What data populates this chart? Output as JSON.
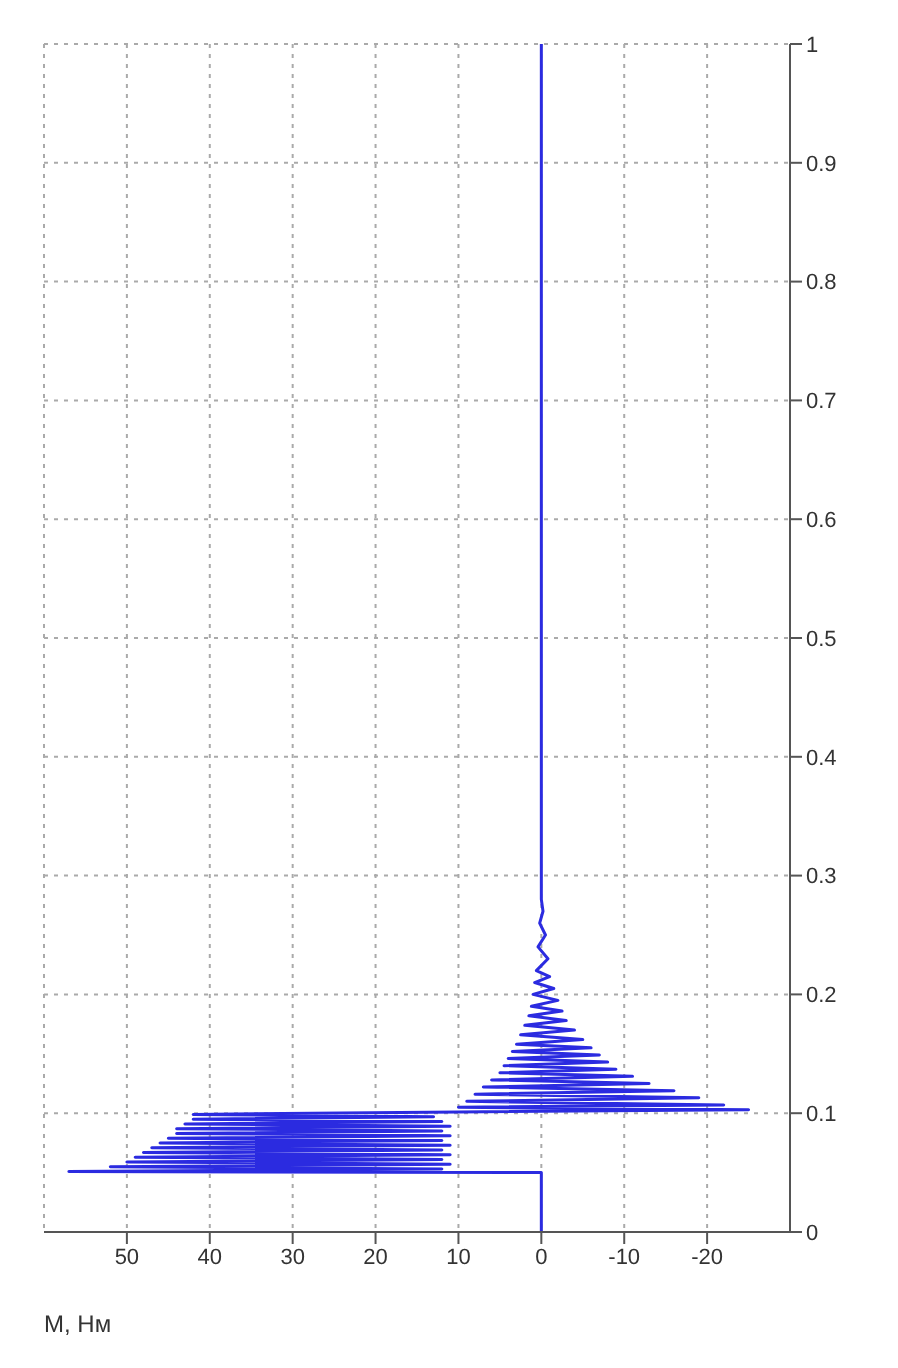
{
  "chart_data": {
    "type": "line",
    "xlabel": "M, Нм",
    "x": [
      0,
      0,
      57,
      12,
      52,
      11,
      50,
      12,
      49,
      11,
      48,
      12,
      47,
      11,
      46,
      12,
      45,
      11,
      44,
      12,
      44,
      11,
      43,
      12,
      42,
      13,
      42,
      10,
      -25,
      10,
      -22,
      9,
      -19,
      8,
      -16,
      7,
      -13,
      6,
      -11,
      5,
      -9,
      4.5,
      -8,
      4,
      -7,
      3.5,
      -6,
      3,
      -5,
      2.5,
      -4,
      2,
      -3,
      1.5,
      -2.5,
      1.2,
      -2,
      1,
      -1.5,
      0.8,
      -1,
      0.6,
      -0.8,
      0.4,
      -0.5,
      0.2,
      -0.2,
      0,
      0
    ],
    "values": [
      0,
      0.05,
      0.051,
      0.053,
      0.055,
      0.057,
      0.059,
      0.061,
      0.063,
      0.065,
      0.067,
      0.069,
      0.071,
      0.073,
      0.075,
      0.077,
      0.079,
      0.081,
      0.083,
      0.085,
      0.087,
      0.089,
      0.091,
      0.093,
      0.095,
      0.097,
      0.099,
      0.101,
      0.103,
      0.105,
      0.107,
      0.11,
      0.113,
      0.116,
      0.119,
      0.122,
      0.125,
      0.128,
      0.131,
      0.134,
      0.137,
      0.14,
      0.143,
      0.146,
      0.149,
      0.152,
      0.155,
      0.158,
      0.162,
      0.166,
      0.17,
      0.174,
      0.178,
      0.182,
      0.186,
      0.19,
      0.195,
      0.2,
      0.205,
      0.21,
      0.215,
      0.22,
      0.23,
      0.24,
      0.25,
      0.26,
      0.27,
      0.28,
      1
    ],
    "color": "#2b2be0",
    "marker": "none",
    "line_style": "solid",
    "xlim": [
      60,
      -30
    ],
    "xticks": [
      50,
      40,
      30,
      20,
      10,
      0,
      -10,
      -20
    ],
    "ylim": [
      0,
      1
    ],
    "yticks": [
      0,
      0.1,
      0.2,
      0.3,
      0.4,
      0.5,
      0.6,
      0.7,
      0.8,
      0.9,
      1
    ],
    "grid": true
  }
}
